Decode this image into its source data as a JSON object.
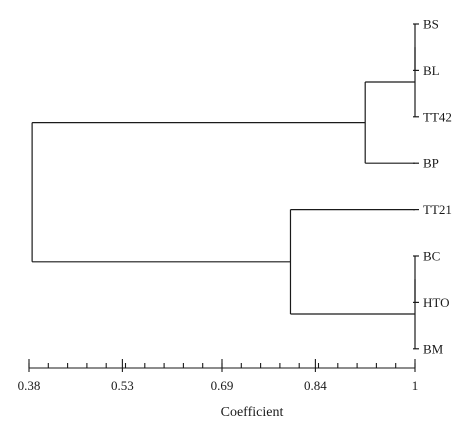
{
  "chart_data": {
    "type": "dendrogram",
    "xlabel": "Coefficient",
    "xlim": [
      0.38,
      1.0
    ],
    "ticks": [
      {
        "value": 0.38,
        "label": "0.38"
      },
      {
        "value": 0.53,
        "label": "0.53"
      },
      {
        "value": 0.69,
        "label": "0.69"
      },
      {
        "value": 0.84,
        "label": "0.84"
      },
      {
        "value": 1.0,
        "label": "1"
      }
    ],
    "minor_tick_step": 0.031,
    "leaves": [
      "BS",
      "BL",
      "TT42",
      "BP",
      "TT21",
      "BC",
      "HTO",
      "BM"
    ],
    "merges": [
      {
        "a": "BS",
        "b": "BL",
        "height": 1.0
      },
      {
        "a": "BS+BL",
        "b": "TT42",
        "height": 1.0
      },
      {
        "a": "BS+BL+TT42",
        "b": "BP",
        "height": 0.92
      },
      {
        "a": "BC",
        "b": "HTO",
        "height": 1.0
      },
      {
        "a": "BC+HTO",
        "b": "BM",
        "height": 1.0
      },
      {
        "a": "TT21",
        "b": "BC+HTO+BM",
        "height": 0.8
      },
      {
        "a": "BS+BL+TT42+BP",
        "b": "TT21+BC+HTO+BM",
        "height": 0.385
      }
    ]
  }
}
